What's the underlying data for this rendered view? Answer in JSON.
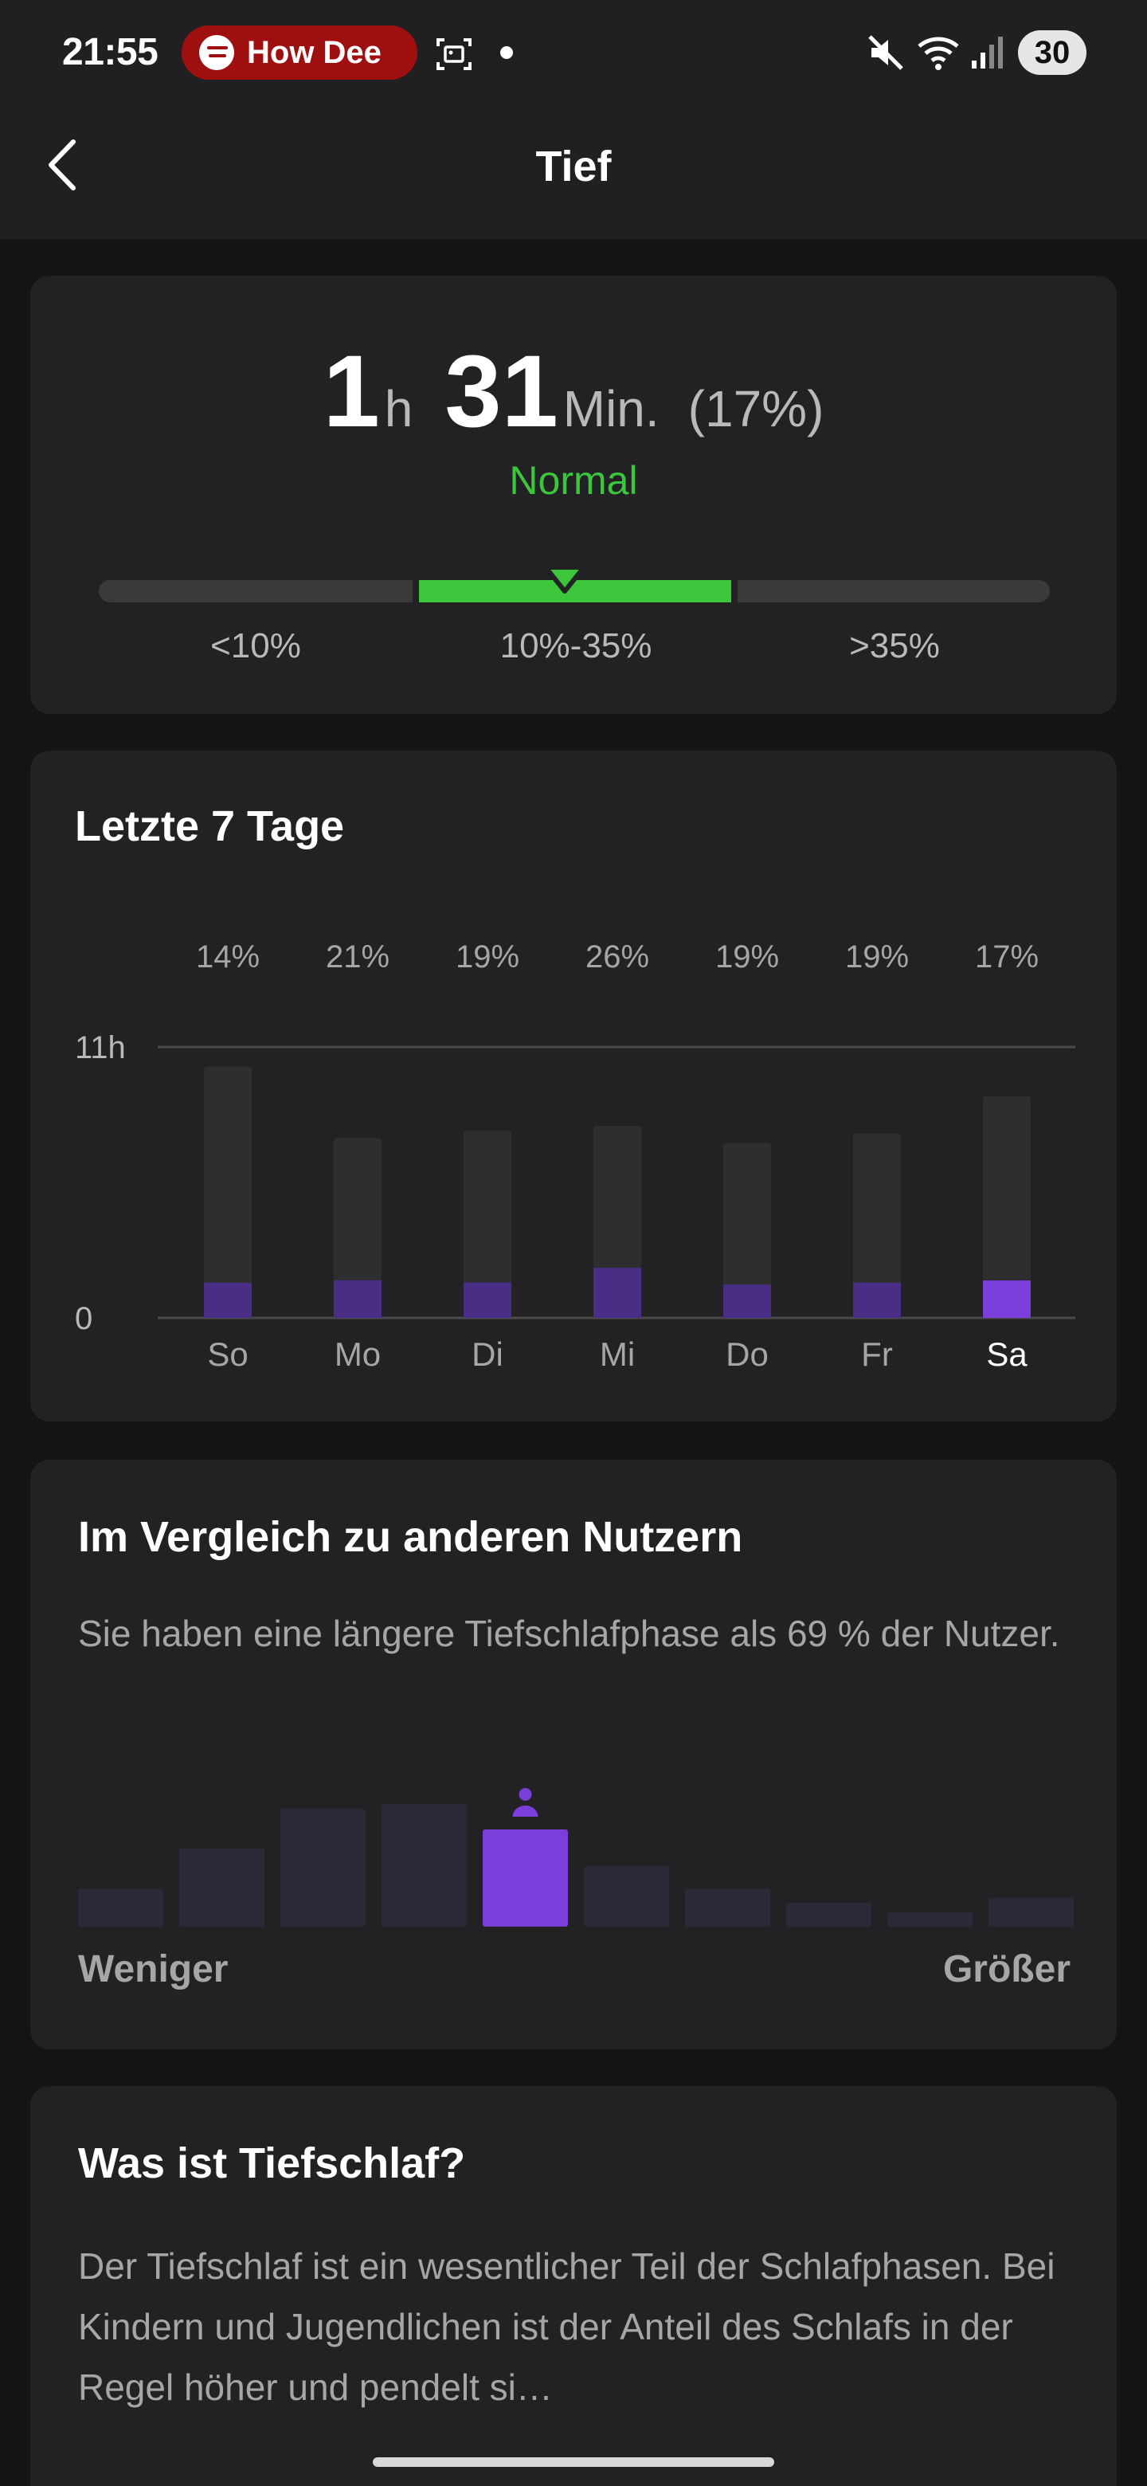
{
  "status_bar": {
    "time": "21:55",
    "media_text": "How Dee",
    "battery": "30",
    "icons": [
      "spotify-icon",
      "screenshot-icon",
      "dot-icon",
      "mute-icon",
      "wifi-icon",
      "signal-icon",
      "battery-icon"
    ]
  },
  "header": {
    "title": "Tief",
    "back_icon": "chevron-left-icon"
  },
  "summary": {
    "hours": "1",
    "hours_unit": "h",
    "minutes": "31",
    "minutes_unit": "Min.",
    "percent": "(17%)",
    "status": "Normal",
    "status_color": "#3cc63c",
    "current_percent": 17,
    "ranges": [
      "<10%",
      "10%-35%",
      ">35%"
    ]
  },
  "weekly": {
    "title": "Letzte 7 Tage"
  },
  "chart_data": {
    "type": "bar",
    "title": "Letzte 7 Tage",
    "categories": [
      "So",
      "Mo",
      "Di",
      "Mi",
      "Do",
      "Fr",
      "Sa"
    ],
    "percent_labels": [
      "14%",
      "21%",
      "19%",
      "26%",
      "19%",
      "19%",
      "17%"
    ],
    "ytick_labels": [
      "0",
      "11h"
    ],
    "ylim": [
      0,
      11
    ],
    "series": [
      {
        "values": [
          10.2,
          7.3,
          7.6,
          7.8,
          7.1,
          7.5,
          9.0
        ]
      },
      {
        "values": [
          1.43,
          1.53,
          1.44,
          2.03,
          1.35,
          1.43,
          1.52
        ]
      }
    ],
    "highlight_index": 6,
    "colors": {
      "total": "#2e2e30",
      "deep": "#4a2d85",
      "deep_highlight": "#7a3fdb",
      "grid": "#4a4a4d"
    }
  },
  "compare": {
    "title": "Im Vergleich zu anderen Nutzern",
    "text": "Sie haben eine längere Tiefschlafphase als 69 % der Nutzer.",
    "label_left": "Weniger",
    "label_right": "Größer",
    "distribution": [
      0.24,
      0.49,
      0.74,
      0.77,
      0.61,
      0.38,
      0.24,
      0.15,
      0.09,
      0.18
    ],
    "user_bin": 4,
    "user_icon": "person-icon",
    "colors": {
      "bin": "#2c2838",
      "user_bin": "#7a3fdb"
    }
  },
  "info": {
    "title": "Was ist Tiefschlaf?",
    "text": "Der Tiefschlaf ist ein wesentlicher Teil der Schlafphasen. Bei Kindern und Jugendlichen ist der Anteil des Schlafs in der Regel höher und pendelt si…"
  }
}
